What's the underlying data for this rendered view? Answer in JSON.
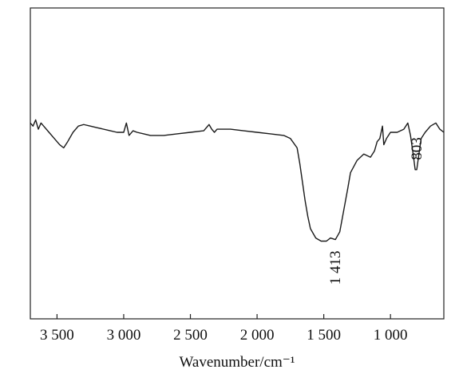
{
  "chart_data": {
    "type": "line",
    "x_label": "Wavenumber/cm⁻¹",
    "xlim": [
      3700,
      600
    ],
    "ylim": [
      0,
      100
    ],
    "xticks": [
      {
        "value": 3500,
        "label": "3 500"
      },
      {
        "value": 3000,
        "label": "3 000"
      },
      {
        "value": 2500,
        "label": "2 500"
      },
      {
        "value": 2000,
        "label": "2 000"
      },
      {
        "value": 1500,
        "label": "1 500"
      },
      {
        "value": 1000,
        "label": "1 000"
      }
    ],
    "series": [
      {
        "color": "#1a1a1a",
        "x": [
          3700,
          3680,
          3660,
          3640,
          3620,
          3600,
          3560,
          3520,
          3480,
          3450,
          3420,
          3380,
          3340,
          3300,
          3250,
          3200,
          3100,
          3050,
          3000,
          2980,
          2960,
          2930,
          2900,
          2850,
          2800,
          2700,
          2600,
          2500,
          2400,
          2360,
          2340,
          2320,
          2300,
          2200,
          2100,
          2000,
          1900,
          1800,
          1750,
          1700,
          1680,
          1660,
          1640,
          1620,
          1600,
          1560,
          1520,
          1480,
          1450,
          1413,
          1380,
          1350,
          1320,
          1300,
          1250,
          1200,
          1150,
          1120,
          1100,
          1080,
          1060,
          1050,
          1030,
          1000,
          950,
          900,
          870,
          850,
          830,
          815,
          803,
          790,
          770,
          740,
          700,
          660,
          630,
          600
        ],
        "values": [
          63,
          62,
          64,
          61,
          63,
          62,
          60,
          58,
          56,
          55,
          57,
          60,
          62,
          62.5,
          62,
          61.5,
          60.5,
          60,
          60,
          63,
          59,
          60.5,
          60,
          59.5,
          59,
          59,
          59.5,
          60,
          60.5,
          62.5,
          61,
          60,
          61,
          61,
          60.5,
          60,
          59.5,
          59,
          58,
          55,
          50,
          44,
          38,
          33,
          29,
          26,
          25,
          25,
          26,
          25.5,
          28,
          35,
          42,
          47,
          51,
          53,
          52,
          54,
          57,
          58,
          62,
          56,
          58,
          60,
          60,
          61,
          63,
          59,
          53,
          48,
          48,
          52,
          58,
          60,
          62,
          63,
          61,
          60
        ]
      }
    ],
    "annotations": [
      {
        "text": "1 413",
        "x": 1413
      },
      {
        "text": "803",
        "x": 803
      }
    ]
  }
}
